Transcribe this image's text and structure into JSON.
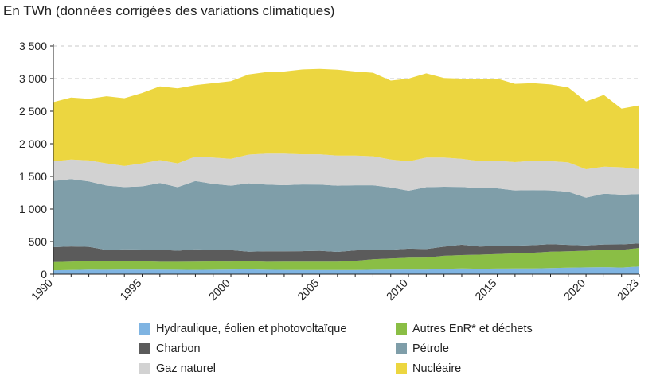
{
  "chart_data": {
    "type": "area",
    "stacked": true,
    "title": "En TWh (données corrigées des variations climatiques)",
    "x": [
      1990,
      1991,
      1992,
      1993,
      1994,
      1995,
      1996,
      1997,
      1998,
      1999,
      2000,
      2001,
      2002,
      2003,
      2004,
      2005,
      2006,
      2007,
      2008,
      2009,
      2010,
      2011,
      2012,
      2013,
      2014,
      2015,
      2016,
      2017,
      2018,
      2019,
      2020,
      2021,
      2022,
      2023
    ],
    "x_ticks": [
      "1990",
      "1995",
      "2000",
      "2005",
      "2010",
      "2015",
      "2020",
      "2023"
    ],
    "y_ticks": [
      "0",
      "500",
      "1 000",
      "1 500",
      "2 000",
      "2 500",
      "3 000",
      "3 500"
    ],
    "ylim": [
      0,
      3500
    ],
    "grid": true,
    "legend_position": "bottom",
    "series": [
      {
        "name": "Hydraulique, éolien et photovoltaïque",
        "color": "#7fb4e2",
        "values": [
          60,
          65,
          70,
          68,
          72,
          70,
          70,
          68,
          66,
          68,
          72,
          75,
          68,
          66,
          65,
          64,
          64,
          65,
          68,
          70,
          72,
          70,
          82,
          88,
          84,
          86,
          88,
          88,
          95,
          100,
          105,
          108,
          102,
          118
        ]
      },
      {
        "name": "Autres EnR* et déchets",
        "color": "#8abe45",
        "values": [
          125,
          128,
          135,
          128,
          130,
          128,
          120,
          122,
          125,
          127,
          122,
          125,
          122,
          125,
          127,
          127,
          127,
          140,
          160,
          170,
          180,
          185,
          200,
          205,
          215,
          222,
          230,
          240,
          250,
          250,
          255,
          263,
          270,
          285
        ]
      },
      {
        "name": "Charbon",
        "color": "#5b5b5b",
        "values": [
          230,
          232,
          215,
          175,
          180,
          180,
          185,
          170,
          190,
          180,
          175,
          145,
          160,
          160,
          160,
          167,
          150,
          160,
          150,
          135,
          140,
          130,
          140,
          160,
          125,
          125,
          120,
          117,
          115,
          100,
          80,
          85,
          85,
          70
        ]
      },
      {
        "name": "Pétrole",
        "color": "#7f9ea9",
        "values": [
          1015,
          1035,
          1005,
          989,
          955,
          970,
          1025,
          975,
          1050,
          1010,
          990,
          1050,
          1025,
          1015,
          1025,
          1017,
          1018,
          1000,
          987,
          955,
          888,
          950,
          920,
          885,
          896,
          884,
          847,
          845,
          825,
          815,
          735,
          779,
          763,
          757
        ]
      },
      {
        "name": "Gaz naturel",
        "color": "#d2d2d2",
        "values": [
          300,
          300,
          320,
          340,
          323,
          352,
          350,
          365,
          374,
          405,
          411,
          440,
          475,
          484,
          463,
          465,
          460,
          455,
          445,
          430,
          450,
          455,
          448,
          432,
          415,
          423,
          435,
          450,
          450,
          450,
          435,
          415,
          420,
          380
        ]
      },
      {
        "name": "Nucléaire",
        "color": "#ecd640",
        "values": [
          910,
          950,
          945,
          1030,
          1040,
          1080,
          1130,
          1150,
          1095,
          1140,
          1190,
          1230,
          1250,
          1260,
          1300,
          1310,
          1319,
          1290,
          1280,
          1210,
          1270,
          1290,
          1220,
          1230,
          1260,
          1260,
          1200,
          1190,
          1175,
          1150,
          1040,
          1100,
          900,
          980
        ]
      }
    ]
  }
}
